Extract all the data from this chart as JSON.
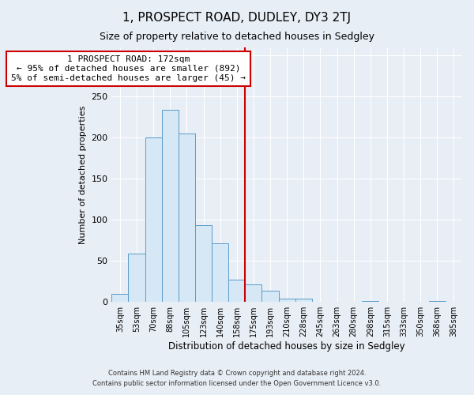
{
  "title": "1, PROSPECT ROAD, DUDLEY, DY3 2TJ",
  "subtitle": "Size of property relative to detached houses in Sedgley",
  "xlabel": "Distribution of detached houses by size in Sedgley",
  "ylabel": "Number of detached properties",
  "bar_labels": [
    "35sqm",
    "53sqm",
    "70sqm",
    "88sqm",
    "105sqm",
    "123sqm",
    "140sqm",
    "158sqm",
    "175sqm",
    "193sqm",
    "210sqm",
    "228sqm",
    "245sqm",
    "263sqm",
    "280sqm",
    "298sqm",
    "315sqm",
    "333sqm",
    "350sqm",
    "368sqm",
    "385sqm"
  ],
  "bar_values": [
    10,
    59,
    200,
    234,
    205,
    94,
    71,
    27,
    21,
    14,
    4,
    4,
    0,
    0,
    0,
    1,
    0,
    0,
    0,
    1,
    0
  ],
  "bar_color": "#d6e8f5",
  "bar_edge_color": "#5a9bc9",
  "vline_color": "#cc0000",
  "annotation_title": "1 PROSPECT ROAD: 172sqm",
  "annotation_line1": "← 95% of detached houses are smaller (892)",
  "annotation_line2": "5% of semi-detached houses are larger (45) →",
  "annotation_box_color": "#ffffff",
  "annotation_box_edge": "#cc0000",
  "ylim": [
    0,
    310
  ],
  "footnote1": "Contains HM Land Registry data © Crown copyright and database right 2024.",
  "footnote2": "Contains public sector information licensed under the Open Government Licence v3.0.",
  "background_color": "#e8eef5"
}
